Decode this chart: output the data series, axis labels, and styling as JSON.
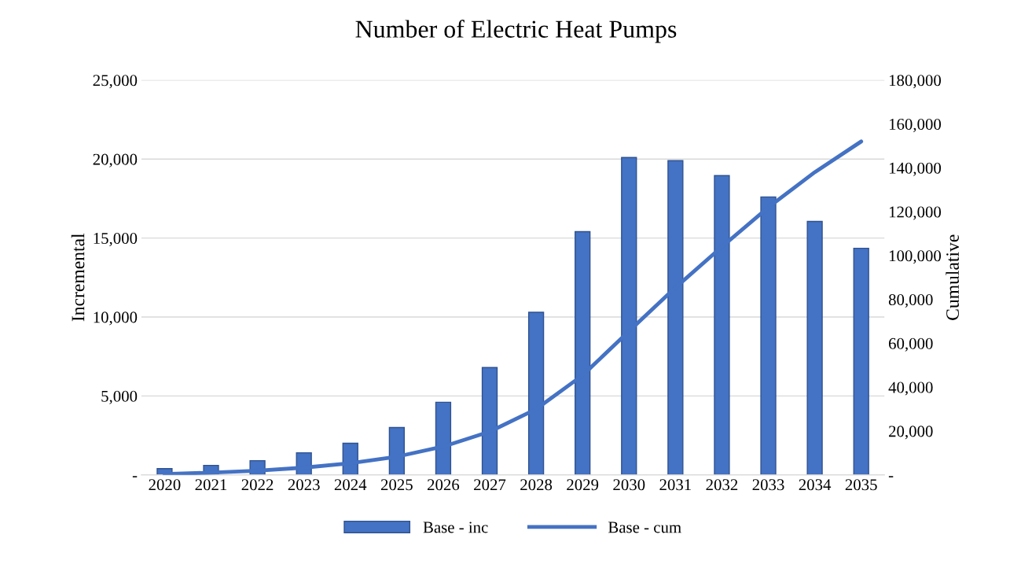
{
  "chart_data": {
    "type": "bar",
    "title": "Number of Electric Heat Pumps",
    "ylabel": "Incremental",
    "y2label": "Cumulative",
    "categories": [
      "2020",
      "2021",
      "2022",
      "2023",
      "2024",
      "2025",
      "2026",
      "2027",
      "2028",
      "2029",
      "2030",
      "2031",
      "2032",
      "2033",
      "2034",
      "2035"
    ],
    "series": [
      {
        "name": "Base - inc",
        "color": "#4472c4",
        "values": [
          400,
          600,
          900,
          1400,
          2000,
          3000,
          4600,
          6800,
          10300,
          15400,
          20100,
          19900,
          18950,
          17600,
          16050,
          14350
        ]
      },
      {
        "name": "Base - cum",
        "type": "line",
        "axis": "y2",
        "color": "#4472c4",
        "values": [
          400,
          1000,
          1900,
          3300,
          5300,
          8300,
          12900,
          19700,
          30000,
          45400,
          65500,
          85400,
          104000,
          122000,
          138000,
          152000
        ]
      }
    ],
    "ylim": [
      0,
      25000
    ],
    "yticks": [
      {
        "value": 0,
        "label": "-"
      },
      {
        "value": 5000,
        "label": "5,000"
      },
      {
        "value": 10000,
        "label": "10,000"
      },
      {
        "value": 15000,
        "label": "15,000"
      },
      {
        "value": 20000,
        "label": "20,000"
      },
      {
        "value": 25000,
        "label": "25,000"
      }
    ],
    "y2lim": [
      0,
      180000
    ],
    "y2ticks": [
      {
        "value": 0,
        "label": "-"
      },
      {
        "value": 20000,
        "label": "20,000"
      },
      {
        "value": 40000,
        "label": "40,000"
      },
      {
        "value": 60000,
        "label": "60,000"
      },
      {
        "value": 80000,
        "label": "80,000"
      },
      {
        "value": 100000,
        "label": "100,000"
      },
      {
        "value": 120000,
        "label": "120,000"
      },
      {
        "value": 140000,
        "label": "140,000"
      },
      {
        "value": 160000,
        "label": "160,000"
      },
      {
        "value": 180000,
        "label": "180,000"
      }
    ],
    "grid": "y",
    "legend": "bottom",
    "marker": "none",
    "line_style": "solid"
  }
}
